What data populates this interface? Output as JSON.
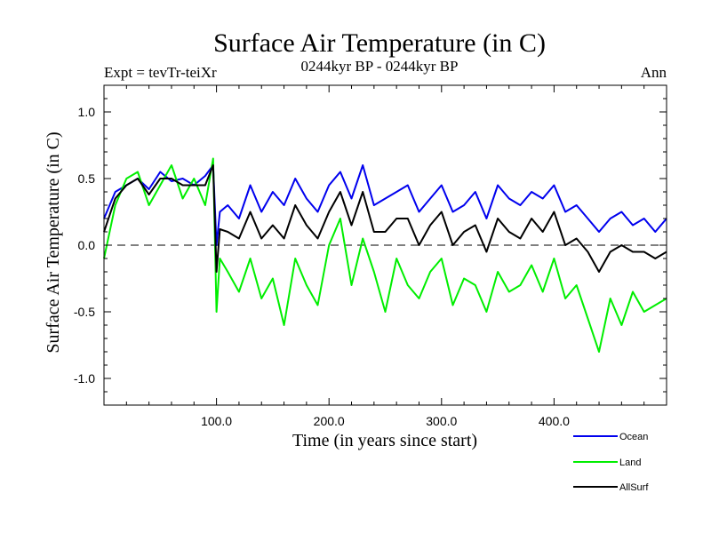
{
  "chart_data": {
    "type": "line",
    "title": "Surface Air Temperature (in C)",
    "subtitle_left": "Expt = tevTr-teiXr",
    "subtitle_center": "0244kyr BP - 0244kyr BP",
    "subtitle_right": "Ann",
    "xlabel": "Time (in years since start)",
    "ylabel": "Surface Air Temperature (in C)",
    "xlim": [
      0,
      500
    ],
    "ylim": [
      -1.2,
      1.2
    ],
    "xticks": [
      100,
      200,
      300,
      400
    ],
    "xtick_labels": [
      "100.0",
      "200.0",
      "300.0",
      "400.0"
    ],
    "yticks": [
      1.0,
      0.5,
      0.0,
      -0.5,
      -1.0
    ],
    "ytick_labels": [
      "1.0",
      "0.5",
      "0.0",
      "-0.5",
      "-1.0"
    ],
    "zero_line": 0.0,
    "legend_position": "bottom-right",
    "series": [
      {
        "name": "Ocean",
        "color": "#0000ee",
        "x": [
          0,
          10,
          20,
          30,
          40,
          50,
          60,
          70,
          80,
          90,
          97,
          100,
          103,
          110,
          120,
          130,
          140,
          150,
          160,
          170,
          180,
          190,
          200,
          210,
          220,
          230,
          240,
          250,
          260,
          270,
          280,
          290,
          300,
          310,
          320,
          330,
          340,
          350,
          360,
          370,
          380,
          390,
          400,
          410,
          420,
          430,
          440,
          450,
          460,
          470,
          480,
          490,
          500
        ],
        "values": [
          0.2,
          0.4,
          0.45,
          0.5,
          0.42,
          0.55,
          0.48,
          0.5,
          0.45,
          0.52,
          0.6,
          0.0,
          0.25,
          0.3,
          0.2,
          0.45,
          0.25,
          0.4,
          0.3,
          0.5,
          0.35,
          0.25,
          0.45,
          0.55,
          0.35,
          0.6,
          0.3,
          0.35,
          0.4,
          0.45,
          0.25,
          0.35,
          0.45,
          0.25,
          0.3,
          0.4,
          0.2,
          0.45,
          0.35,
          0.3,
          0.4,
          0.35,
          0.45,
          0.25,
          0.3,
          0.2,
          0.1,
          0.2,
          0.25,
          0.15,
          0.2,
          0.1,
          0.2
        ]
      },
      {
        "name": "Land",
        "color": "#00ee00",
        "x": [
          0,
          10,
          20,
          30,
          40,
          50,
          60,
          70,
          80,
          90,
          97,
          100,
          103,
          110,
          120,
          130,
          140,
          150,
          160,
          170,
          180,
          190,
          200,
          210,
          220,
          230,
          240,
          250,
          260,
          270,
          280,
          290,
          300,
          310,
          320,
          330,
          340,
          350,
          360,
          370,
          380,
          390,
          400,
          410,
          420,
          430,
          440,
          450,
          460,
          470,
          480,
          490,
          500
        ],
        "values": [
          -0.1,
          0.3,
          0.5,
          0.55,
          0.3,
          0.45,
          0.6,
          0.35,
          0.5,
          0.3,
          0.65,
          -0.5,
          -0.1,
          -0.2,
          -0.35,
          -0.1,
          -0.4,
          -0.25,
          -0.6,
          -0.1,
          -0.3,
          -0.45,
          0.0,
          0.2,
          -0.3,
          0.05,
          -0.2,
          -0.5,
          -0.1,
          -0.3,
          -0.4,
          -0.2,
          -0.1,
          -0.45,
          -0.25,
          -0.3,
          -0.5,
          -0.2,
          -0.35,
          -0.3,
          -0.15,
          -0.35,
          -0.1,
          -0.4,
          -0.3,
          -0.55,
          -0.8,
          -0.4,
          -0.6,
          -0.35,
          -0.5,
          -0.45,
          -0.4
        ]
      },
      {
        "name": "AllSurf",
        "color": "#000000",
        "x": [
          0,
          10,
          20,
          30,
          40,
          50,
          60,
          70,
          80,
          90,
          97,
          100,
          103,
          110,
          120,
          130,
          140,
          150,
          160,
          170,
          180,
          190,
          200,
          210,
          220,
          230,
          240,
          250,
          260,
          270,
          280,
          290,
          300,
          310,
          320,
          330,
          340,
          350,
          360,
          370,
          380,
          390,
          400,
          410,
          420,
          430,
          440,
          450,
          460,
          470,
          480,
          490,
          500
        ],
        "values": [
          0.1,
          0.35,
          0.45,
          0.5,
          0.38,
          0.5,
          0.5,
          0.45,
          0.45,
          0.45,
          0.6,
          -0.2,
          0.12,
          0.1,
          0.05,
          0.25,
          0.05,
          0.15,
          0.05,
          0.3,
          0.15,
          0.05,
          0.25,
          0.4,
          0.15,
          0.4,
          0.1,
          0.1,
          0.2,
          0.2,
          0.0,
          0.15,
          0.25,
          0.0,
          0.1,
          0.15,
          -0.05,
          0.2,
          0.1,
          0.05,
          0.2,
          0.1,
          0.25,
          0.0,
          0.05,
          -0.05,
          -0.2,
          -0.05,
          0.0,
          -0.05,
          -0.05,
          -0.1,
          -0.05
        ]
      }
    ]
  }
}
